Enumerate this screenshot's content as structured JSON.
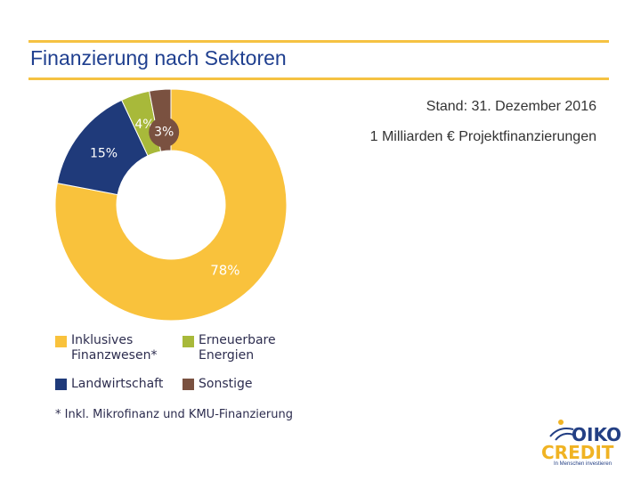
{
  "header": {
    "title": "Finanzierung nach Sektoren",
    "date": "Stand: 31. Dezember 2016",
    "volume": "1 Milliarden € Projektfinanzierungen"
  },
  "chart_data": {
    "type": "pie",
    "variant": "donut",
    "title": "Finanzierung nach Sektoren",
    "categories": [
      "Inklusives Finanzwesen*",
      "Landwirtschaft",
      "Erneuerbare Energien",
      "Sonstige"
    ],
    "values": [
      78,
      15,
      4,
      3
    ],
    "labels": [
      "78%",
      "15%",
      "4%",
      "3%"
    ],
    "colors": [
      "#f9c23c",
      "#1f3a7a",
      "#a8b93a",
      "#7a5140"
    ],
    "legend_position": "bottom",
    "legend": [
      {
        "label": "Inklusives\nFinanzwesen*",
        "color": "#f9c23c"
      },
      {
        "label": "Erneuerbare\nEnergien",
        "color": "#a8b93a"
      },
      {
        "label": "Landwirtschaft",
        "color": "#1f3a7a"
      },
      {
        "label": "Sonstige",
        "color": "#7a5140"
      }
    ],
    "footnote": "* Inkl. Mikrofinanz und KMU-Finanzierung"
  },
  "logo": {
    "line1": "OIKO",
    "line2": "CREDIT",
    "tagline": "In Menschen investieren"
  }
}
